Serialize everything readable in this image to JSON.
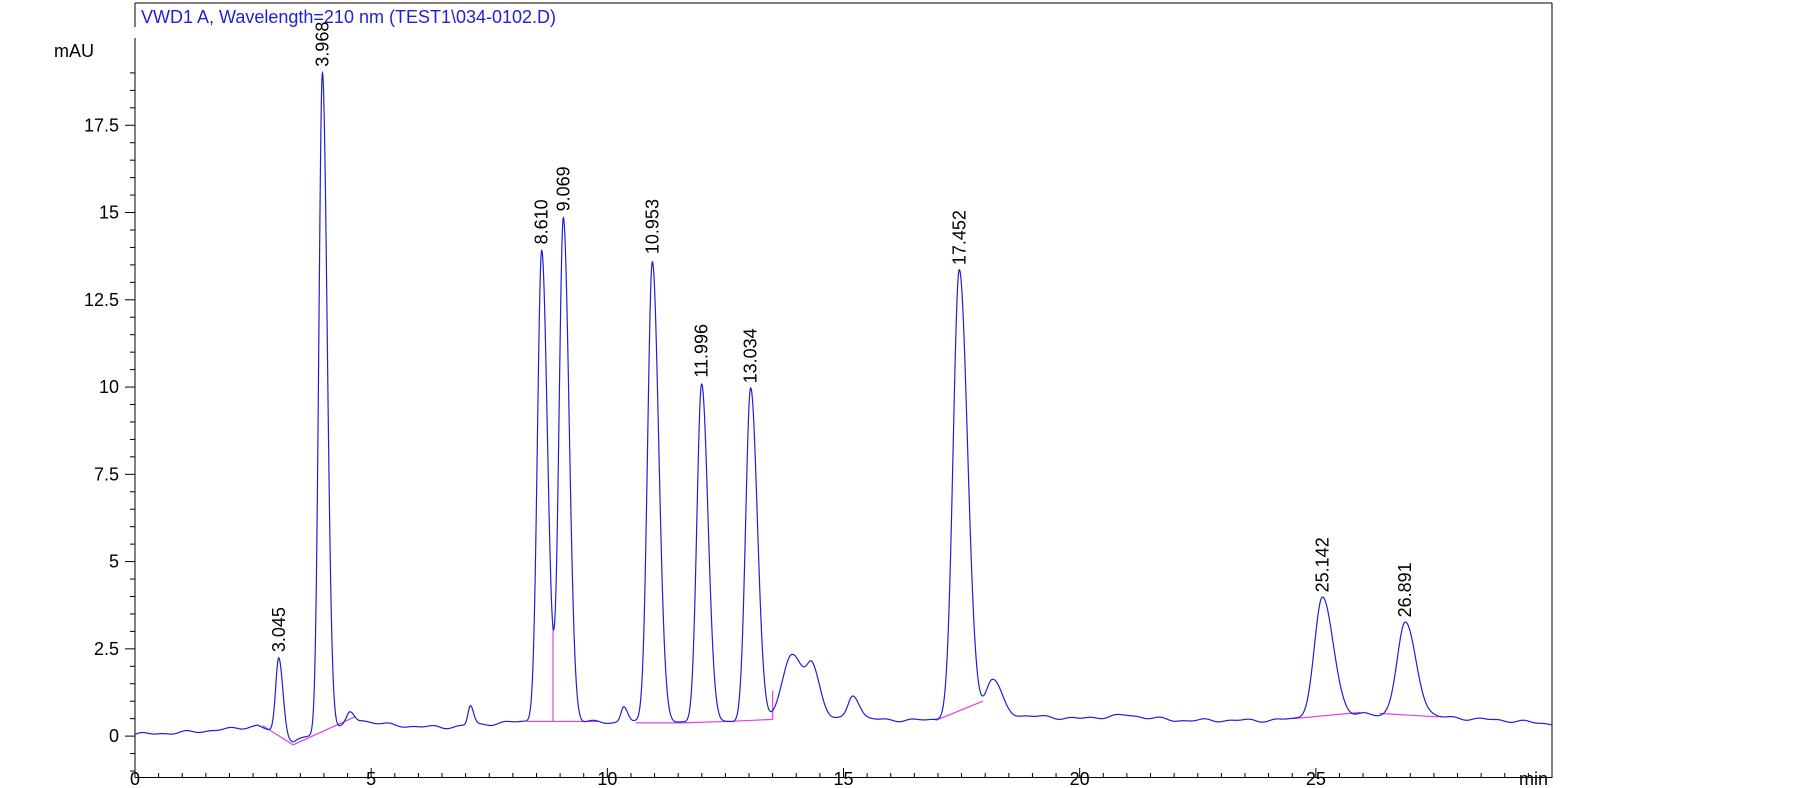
{
  "chart_data": {
    "type": "line",
    "title": "VWD1 A, Wavelength=210 nm (TEST1\\034-0102.D)",
    "ylabel": "mAU",
    "xlabel": "min",
    "xlim": [
      0,
      30
    ],
    "ylim": [
      -1.2,
      20.0
    ],
    "x_ticks": [
      0,
      5,
      10,
      15,
      20,
      25
    ],
    "y_ticks": [
      0,
      2.5,
      5,
      7.5,
      10,
      12.5,
      15,
      17.5
    ],
    "x_tick_labels": [
      "0",
      "5",
      "10",
      "15",
      "20",
      "25"
    ],
    "y_tick_labels": [
      "0",
      "2.5",
      "5",
      "7.5",
      "10",
      "12.5",
      "15",
      "17.5"
    ],
    "grid": false,
    "colors": {
      "trace": "#1f1fd6",
      "baseline": "#e040e0",
      "title": "#1f1fd6",
      "axis": "#000000"
    },
    "peaks": [
      {
        "rt": 3.045,
        "label": "3.045",
        "height": 2.2,
        "sigma": 0.065
      },
      {
        "rt": 3.968,
        "label": "3.968",
        "height": 18.9,
        "sigma": 0.075
      },
      {
        "rt": 8.61,
        "label": "8.610",
        "height": 13.5,
        "sigma": 0.09
      },
      {
        "rt": 9.069,
        "label": "9.069",
        "height": 14.45,
        "sigma": 0.09
      },
      {
        "rt": 10.953,
        "label": "10.953",
        "height": 13.25,
        "sigma": 0.1
      },
      {
        "rt": 11.996,
        "label": "11.996",
        "height": 9.7,
        "sigma": 0.1
      },
      {
        "rt": 13.034,
        "label": "13.034",
        "height": 9.5,
        "sigma": 0.105
      },
      {
        "rt": 17.452,
        "label": "17.452",
        "height": 12.8,
        "sigma": 0.13
      },
      {
        "rt": 25.142,
        "label": "25.142",
        "height": 3.4,
        "sigma": 0.17
      },
      {
        "rt": 26.891,
        "label": "26.891",
        "height": 2.65,
        "sigma": 0.17
      }
    ],
    "minor_peaks": [
      {
        "rt": 4.55,
        "height": 0.32,
        "sigma": 0.07
      },
      {
        "rt": 7.1,
        "height": 0.55,
        "sigma": 0.05
      },
      {
        "rt": 10.35,
        "height": 0.45,
        "sigma": 0.06
      },
      {
        "rt": 13.9,
        "height": 1.85,
        "sigma": 0.2
      },
      {
        "rt": 14.35,
        "height": 1.2,
        "sigma": 0.12
      },
      {
        "rt": 15.2,
        "height": 0.7,
        "sigma": 0.1
      },
      {
        "rt": 18.15,
        "height": 1.05,
        "sigma": 0.14
      }
    ],
    "baseline_segments": [
      {
        "x": [
          2.7,
          3.35
        ],
        "y": [
          0.3,
          -0.25
        ]
      },
      {
        "x": [
          3.35,
          4.65
        ],
        "y": [
          -0.25,
          0.55
        ]
      },
      {
        "x": [
          8.3,
          8.85
        ],
        "y": [
          0.42,
          0.42
        ]
      },
      {
        "x": [
          8.85,
          9.8
        ],
        "y": [
          0.42,
          0.42
        ]
      },
      {
        "x": [
          10.6,
          11.55
        ],
        "y": [
          0.38,
          0.38
        ]
      },
      {
        "x": [
          11.55,
          12.55
        ],
        "y": [
          0.38,
          0.42
        ]
      },
      {
        "x": [
          12.55,
          13.5
        ],
        "y": [
          0.42,
          0.48
        ]
      },
      {
        "x": [
          16.95,
          17.95
        ],
        "y": [
          0.45,
          1.0
        ]
      },
      {
        "x": [
          24.5,
          25.95
        ],
        "y": [
          0.5,
          0.68
        ]
      },
      {
        "x": [
          26.35,
          27.6
        ],
        "y": [
          0.65,
          0.55
        ]
      }
    ]
  }
}
